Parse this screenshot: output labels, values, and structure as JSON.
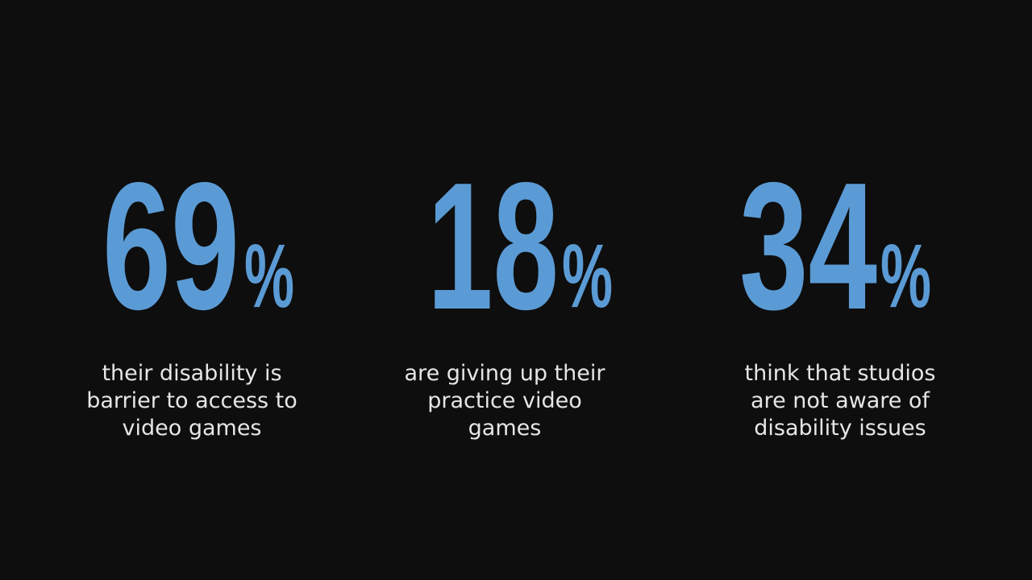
{
  "stats": [
    {
      "value": 69,
      "unit": "%",
      "caption": [
        "their disability is",
        "barrier to access to",
        "video games"
      ]
    },
    {
      "value": 18,
      "unit": "%",
      "caption": [
        "are giving up their",
        "practice video",
        "games"
      ]
    },
    {
      "value": 34,
      "unit": "%",
      "caption": [
        "think that studios",
        "are not aware of",
        "disability issues"
      ]
    }
  ]
}
